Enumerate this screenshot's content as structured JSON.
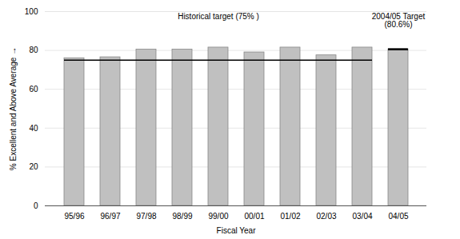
{
  "chart_data": {
    "type": "bar",
    "categories": [
      "95/96",
      "96/97",
      "97/98",
      "98/99",
      "99/00",
      "00/01",
      "01/02",
      "02/03",
      "03/04",
      "04/05"
    ],
    "values": [
      76.0,
      76.5,
      80.5,
      80.5,
      81.5,
      79.0,
      81.5,
      77.5,
      81.5,
      80.6
    ],
    "color": "#c0c0c0",
    "xlabel": "Fiscal Year",
    "ylabel": "% Excellent and Above Average",
    "ylim": [
      0,
      100
    ],
    "yticks": [
      0,
      20,
      40,
      60,
      80,
      100
    ],
    "grid": true,
    "annotations": [
      {
        "text": "Historical target (75% )",
        "y": 75,
        "from": "95/96",
        "to": "03/04"
      },
      {
        "text": "2004/05 Target\n(80.6%)",
        "y": 80.6,
        "from": "04/05",
        "to": "04/05"
      }
    ]
  }
}
